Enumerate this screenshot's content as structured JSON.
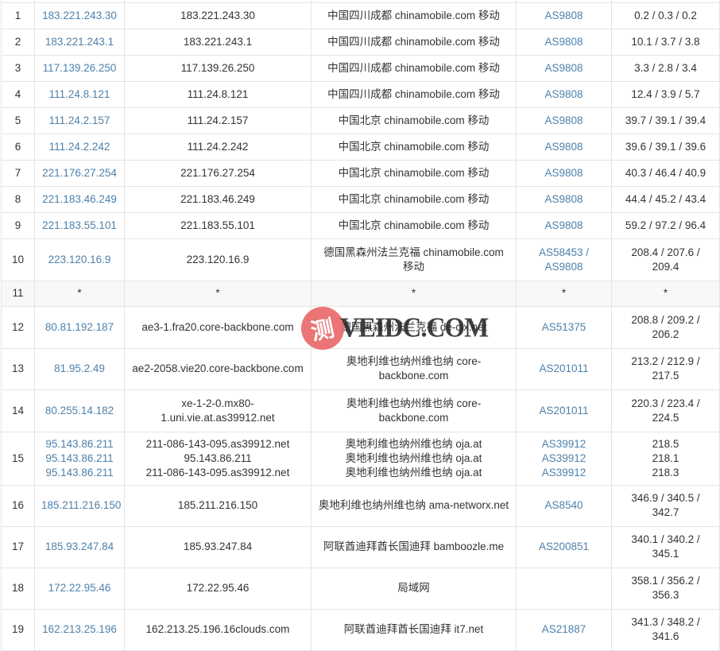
{
  "watermark": {
    "badge_char": "测",
    "text": "VEIDC.COM",
    "badge_color": "#ea6a6b",
    "text_color": "#262626"
  },
  "colors": {
    "link_blue": "#4e81aa",
    "body_text": "#333333",
    "border": "#e4e4e4",
    "muted_row_bg": "#f7f8f8"
  },
  "table": {
    "rows": [
      {
        "hop": "1",
        "ip": [
          "183.221.243.30"
        ],
        "host": [
          "183.221.243.30"
        ],
        "loc": [
          "中国四川成都 chinamobile.com 移动"
        ],
        "asn": [
          "AS9808"
        ],
        "latency": [
          "0.2 / 0.3 / 0.2"
        ],
        "muted": false
      },
      {
        "hop": "2",
        "ip": [
          "183.221.243.1"
        ],
        "host": [
          "183.221.243.1"
        ],
        "loc": [
          "中国四川成都 chinamobile.com 移动"
        ],
        "asn": [
          "AS9808"
        ],
        "latency": [
          "10.1 / 3.7 / 3.8"
        ],
        "muted": false
      },
      {
        "hop": "3",
        "ip": [
          "117.139.26.250"
        ],
        "host": [
          "117.139.26.250"
        ],
        "loc": [
          "中国四川成都 chinamobile.com 移动"
        ],
        "asn": [
          "AS9808"
        ],
        "latency": [
          "3.3 / 2.8 / 3.4"
        ],
        "muted": false
      },
      {
        "hop": "4",
        "ip": [
          "111.24.8.121"
        ],
        "host": [
          "111.24.8.121"
        ],
        "loc": [
          "中国四川成都 chinamobile.com 移动"
        ],
        "asn": [
          "AS9808"
        ],
        "latency": [
          "12.4 / 3.9 / 5.7"
        ],
        "muted": false
      },
      {
        "hop": "5",
        "ip": [
          "111.24.2.157"
        ],
        "host": [
          "111.24.2.157"
        ],
        "loc": [
          "中国北京 chinamobile.com 移动"
        ],
        "asn": [
          "AS9808"
        ],
        "latency": [
          "39.7 / 39.1 / 39.4"
        ],
        "muted": false
      },
      {
        "hop": "6",
        "ip": [
          "111.24.2.242"
        ],
        "host": [
          "111.24.2.242"
        ],
        "loc": [
          "中国北京 chinamobile.com 移动"
        ],
        "asn": [
          "AS9808"
        ],
        "latency": [
          "39.6 / 39.1 / 39.6"
        ],
        "muted": false
      },
      {
        "hop": "7",
        "ip": [
          "221.176.27.254"
        ],
        "host": [
          "221.176.27.254"
        ],
        "loc": [
          "中国北京 chinamobile.com 移动"
        ],
        "asn": [
          "AS9808"
        ],
        "latency": [
          "40.3 / 46.4 / 40.9"
        ],
        "muted": false
      },
      {
        "hop": "8",
        "ip": [
          "221.183.46.249"
        ],
        "host": [
          "221.183.46.249"
        ],
        "loc": [
          "中国北京 chinamobile.com 移动"
        ],
        "asn": [
          "AS9808"
        ],
        "latency": [
          "44.4 / 45.2 / 43.4"
        ],
        "muted": false
      },
      {
        "hop": "9",
        "ip": [
          "221.183.55.101"
        ],
        "host": [
          "221.183.55.101"
        ],
        "loc": [
          "中国北京 chinamobile.com 移动"
        ],
        "asn": [
          "AS9808"
        ],
        "latency": [
          "59.2 / 97.2 / 96.4"
        ],
        "muted": false
      },
      {
        "hop": "10",
        "ip": [
          "223.120.16.9"
        ],
        "host": [
          "223.120.16.9"
        ],
        "loc": [
          "德国黑森州法兰克福 chinamobile.com 移动"
        ],
        "asn": [
          "AS58453 / AS9808"
        ],
        "latency": [
          "208.4 / 207.6 / 209.4"
        ],
        "muted": false
      },
      {
        "hop": "11",
        "ip": [
          "*"
        ],
        "host": [
          "*"
        ],
        "loc": [
          "*"
        ],
        "asn": [
          "*"
        ],
        "latency": [
          "*"
        ],
        "muted": true
      },
      {
        "hop": "12",
        "ip": [
          "80.81.192.187"
        ],
        "host": [
          "ae3-1.fra20.core-backbone.com"
        ],
        "loc": [
          "德国黑森州法兰克福 de-cix.net"
        ],
        "asn": [
          "AS51375"
        ],
        "latency": [
          "208.8 / 209.2 / 206.2"
        ],
        "muted": false
      },
      {
        "hop": "13",
        "ip": [
          "81.95.2.49"
        ],
        "host": [
          "ae2-2058.vie20.core-backbone.com"
        ],
        "loc": [
          "奥地利维也纳州维也纳 core-backbone.com"
        ],
        "asn": [
          "AS201011"
        ],
        "latency": [
          "213.2 / 212.9 / 217.5"
        ],
        "muted": false
      },
      {
        "hop": "14",
        "ip": [
          "80.255.14.182"
        ],
        "host": [
          "xe-1-2-0.mx80-1.uni.vie.at.as39912.net"
        ],
        "loc": [
          "奥地利维也纳州维也纳 core-backbone.com"
        ],
        "asn": [
          "AS201011"
        ],
        "latency": [
          "220.3 / 223.4 / 224.5"
        ],
        "muted": false
      },
      {
        "hop": "15",
        "ip": [
          "95.143.86.211",
          "95.143.86.211",
          "95.143.86.211"
        ],
        "host": [
          "211-086-143-095.as39912.net",
          "95.143.86.211",
          "211-086-143-095.as39912.net"
        ],
        "loc": [
          "奥地利维也纳州维也纳 oja.at",
          "奥地利维也纳州维也纳 oja.at",
          "奥地利维也纳州维也纳 oja.at"
        ],
        "asn": [
          "AS39912",
          "AS39912",
          "AS39912"
        ],
        "latency": [
          "218.5",
          "218.1",
          "218.3"
        ],
        "muted": false
      },
      {
        "hop": "16",
        "ip": [
          "185.211.216.150"
        ],
        "host": [
          "185.211.216.150"
        ],
        "loc": [
          "奥地利维也纳州维也纳 ama-networx.net"
        ],
        "asn": [
          "AS8540"
        ],
        "latency": [
          "346.9 / 340.5 / 342.7"
        ],
        "muted": false
      },
      {
        "hop": "17",
        "ip": [
          "185.93.247.84"
        ],
        "host": [
          "185.93.247.84"
        ],
        "loc": [
          "阿联酋迪拜酋长国迪拜 bamboozle.me"
        ],
        "asn": [
          "AS200851"
        ],
        "latency": [
          "340.1 / 340.2 / 345.1"
        ],
        "muted": false
      },
      {
        "hop": "18",
        "ip": [
          "172.22.95.46"
        ],
        "host": [
          "172.22.95.46"
        ],
        "loc": [
          "局域网"
        ],
        "asn": [],
        "latency": [
          "358.1 / 356.2 / 356.3"
        ],
        "muted": false
      },
      {
        "hop": "19",
        "ip": [
          "162.213.25.196"
        ],
        "host": [
          "162.213.25.196.16clouds.com"
        ],
        "loc": [
          "阿联酋迪拜酋长国迪拜 it7.net"
        ],
        "asn": [
          "AS21887"
        ],
        "latency": [
          "341.3 / 348.2 / 341.6"
        ],
        "muted": false
      }
    ]
  }
}
